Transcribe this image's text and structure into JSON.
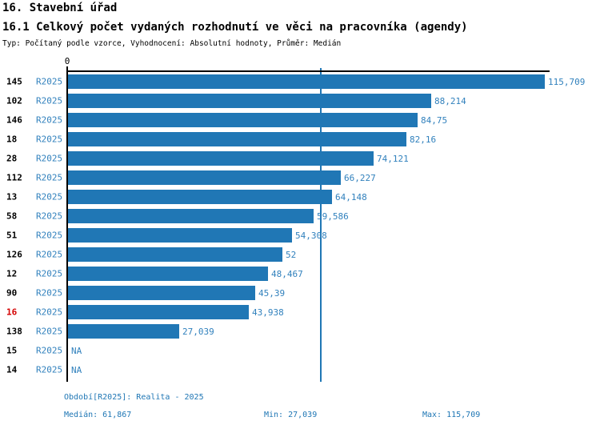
{
  "header": {
    "title": "16. Stavební úřad",
    "subtitle": "16.1 Celkový počet vydaných rozhodnutí ve věci na pracovníka (agendy)",
    "meta": "Typ: Počítaný podle vzorce, Vyhodnocení: Absolutní hodnoty, Průměr: Medián"
  },
  "chart_data": {
    "type": "bar",
    "orientation": "horizontal",
    "title": "16.1 Celkový počet vydaných rozhodnutí ve věci na pracovníka (agendy)",
    "axis_zero_label": "0",
    "series_label": "R2025",
    "categories": [
      "145",
      "102",
      "146",
      "18",
      "28",
      "112",
      "13",
      "58",
      "51",
      "126",
      "12",
      "90",
      "16",
      "138",
      "15",
      "14"
    ],
    "values": [
      115.709,
      88.214,
      84.75,
      82.16,
      74.121,
      66.227,
      64.148,
      59.586,
      54.308,
      52,
      48.467,
      45.39,
      43.938,
      27.039,
      null,
      null
    ],
    "value_labels": [
      "115,709",
      "88,214",
      "84,75",
      "82,16",
      "74,121",
      "66,227",
      "64,148",
      "59,586",
      "54,308",
      "52",
      "48,467",
      "45,39",
      "43,938",
      "27,039",
      "NA",
      "NA"
    ],
    "highlighted_category": "16",
    "xlim": [
      0,
      115.709
    ],
    "median": 61.867,
    "min": 27.039,
    "max": 115.709,
    "grid": false,
    "legend_position": "none",
    "colors": {
      "bar": "#2077b5",
      "median_line": "#2077b5",
      "axis": "#000000",
      "blue_text": "#3181bd",
      "footer_text": "#2077b5",
      "highlight_text": "#d40000"
    }
  },
  "footer": {
    "period": "Období[R2025]: Realita - 2025",
    "median": "Medián: 61,867",
    "min": "Min: 27,039",
    "max": "Max: 115,709"
  }
}
